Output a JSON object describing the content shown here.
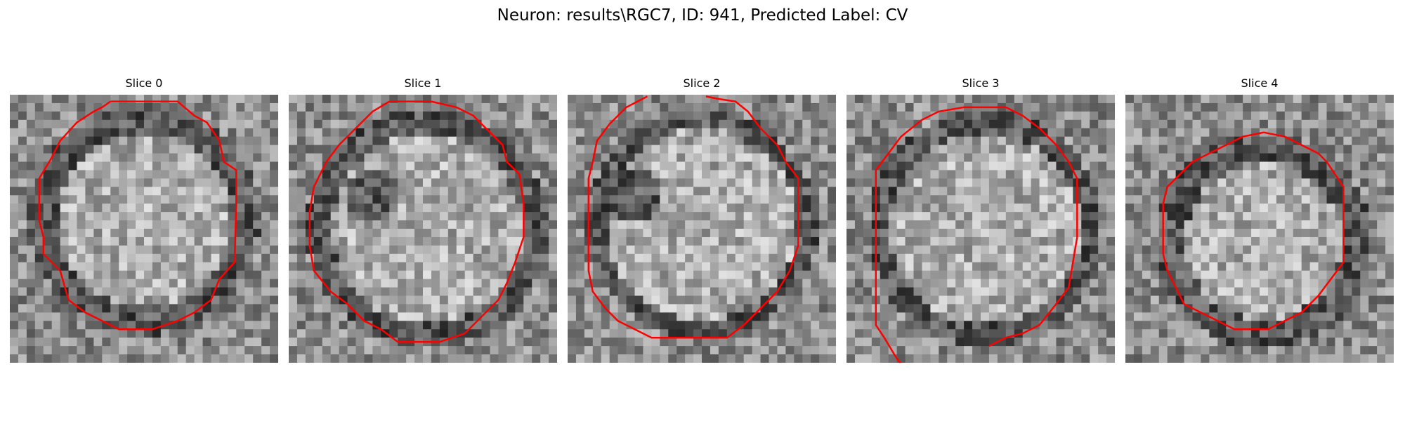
{
  "figure": {
    "title": "Neuron: results\\RGC7, ID: 941, Predicted Label: CV"
  },
  "panels": [
    {
      "title": "Slice 0"
    },
    {
      "title": "Slice 1"
    },
    {
      "title": "Slice 2"
    },
    {
      "title": "Slice 3"
    },
    {
      "title": "Slice 4"
    }
  ],
  "colors": {
    "contour": "#ff0000",
    "background": "#ffffff"
  },
  "image": {
    "grid": "32x32 grayscale voxel slice",
    "colormap": "gray"
  }
}
